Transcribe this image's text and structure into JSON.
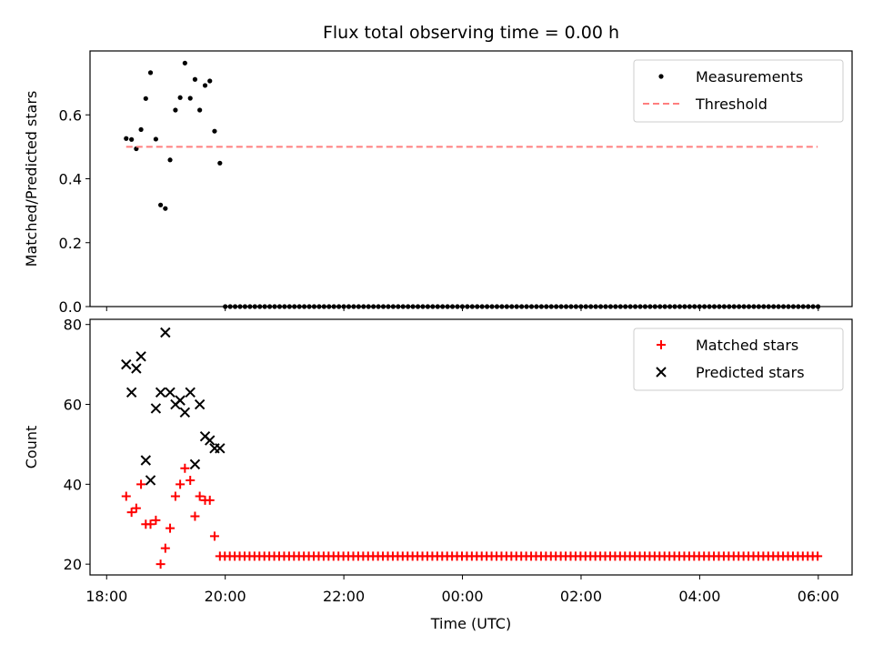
{
  "chart_data": {
    "title": "Flux total observing time = 0.00 h",
    "xlabel": "Time (UTC)",
    "x_unit": "hours (UTC) since 18:00",
    "x_ticks": [
      {
        "v": 0,
        "label": "18:00"
      },
      {
        "v": 2,
        "label": "20:00"
      },
      {
        "v": 4,
        "label": "22:00"
      },
      {
        "v": 6,
        "label": "00:00"
      },
      {
        "v": 8,
        "label": "02:00"
      },
      {
        "v": 10,
        "label": "04:00"
      },
      {
        "v": 12,
        "label": "06:00"
      }
    ],
    "xlim": [
      -0.28,
      12.57
    ],
    "subplots": [
      {
        "type": "scatter",
        "ylabel": "Matched/Predicted stars",
        "ylim": [
          0,
          0.8
        ],
        "y_ticks": [
          {
            "v": 0,
            "label": "0.0"
          },
          {
            "v": 0.2,
            "label": "0.2"
          },
          {
            "v": 0.4,
            "label": "0.4"
          },
          {
            "v": 0.6,
            "label": "0.6"
          }
        ],
        "legend": {
          "position": "upper right",
          "entries": [
            "Measurements",
            "Threshold"
          ]
        },
        "series": [
          {
            "name": "Measurements",
            "kind": "dot",
            "color": "#000000",
            "points": [
              [
                0.33,
                0.526
              ],
              [
                0.42,
                0.523
              ],
              [
                0.5,
                0.494
              ],
              [
                0.58,
                0.554
              ],
              [
                0.66,
                0.651
              ],
              [
                0.74,
                0.732
              ],
              [
                0.83,
                0.524
              ],
              [
                0.91,
                0.318
              ],
              [
                0.99,
                0.307
              ],
              [
                1.07,
                0.459
              ],
              [
                1.16,
                0.615
              ],
              [
                1.24,
                0.654
              ],
              [
                1.32,
                0.762
              ],
              [
                1.41,
                0.652
              ],
              [
                1.49,
                0.711
              ],
              [
                1.57,
                0.615
              ],
              [
                1.66,
                0.692
              ],
              [
                1.74,
                0.706
              ],
              [
                1.82,
                0.549
              ],
              [
                1.91,
                0.449
              ]
            ],
            "zero_from": 2.0,
            "zero_to": 12.0,
            "zero_step": 0.0833
          },
          {
            "name": "Threshold",
            "kind": "dashed-line",
            "color": "#ff7f7f",
            "x": [
              0.33,
              11.99
            ],
            "y": 0.5
          }
        ]
      },
      {
        "type": "scatter",
        "ylabel": "Count",
        "ylim": [
          17.3,
          81.3
        ],
        "y_ticks": [
          {
            "v": 20,
            "label": "20"
          },
          {
            "v": 40,
            "label": "40"
          },
          {
            "v": 60,
            "label": "60"
          },
          {
            "v": 80,
            "label": "80"
          }
        ],
        "legend": {
          "position": "upper right",
          "entries": [
            "Matched stars",
            "Predicted stars"
          ]
        },
        "series": [
          {
            "name": "Matched stars",
            "kind": "plus",
            "color": "#ff0000",
            "points": [
              [
                0.33,
                37
              ],
              [
                0.42,
                33
              ],
              [
                0.5,
                34
              ],
              [
                0.58,
                40
              ],
              [
                0.66,
                30
              ],
              [
                0.74,
                30
              ],
              [
                0.83,
                31
              ],
              [
                0.91,
                20
              ],
              [
                0.99,
                24
              ],
              [
                1.07,
                29
              ],
              [
                1.16,
                37
              ],
              [
                1.24,
                40
              ],
              [
                1.32,
                44
              ],
              [
                1.41,
                41
              ],
              [
                1.49,
                32
              ],
              [
                1.57,
                37
              ],
              [
                1.66,
                36
              ],
              [
                1.74,
                36
              ],
              [
                1.82,
                27
              ]
            ],
            "flat_value": 22,
            "flat_from": 1.91,
            "flat_to": 12.0,
            "flat_step": 0.0833
          },
          {
            "name": "Predicted stars",
            "kind": "x",
            "color": "#000000",
            "points": [
              [
                0.33,
                70
              ],
              [
                0.42,
                63
              ],
              [
                0.5,
                69
              ],
              [
                0.58,
                72
              ],
              [
                0.66,
                46
              ],
              [
                0.74,
                41
              ],
              [
                0.83,
                59
              ],
              [
                0.91,
                63
              ],
              [
                0.99,
                78
              ],
              [
                1.07,
                63
              ],
              [
                1.16,
                60
              ],
              [
                1.24,
                61
              ],
              [
                1.32,
                58
              ],
              [
                1.41,
                63
              ],
              [
                1.49,
                45
              ],
              [
                1.57,
                60
              ],
              [
                1.66,
                52
              ],
              [
                1.74,
                51
              ],
              [
                1.82,
                49
              ],
              [
                1.91,
                49
              ]
            ]
          }
        ]
      }
    ]
  }
}
